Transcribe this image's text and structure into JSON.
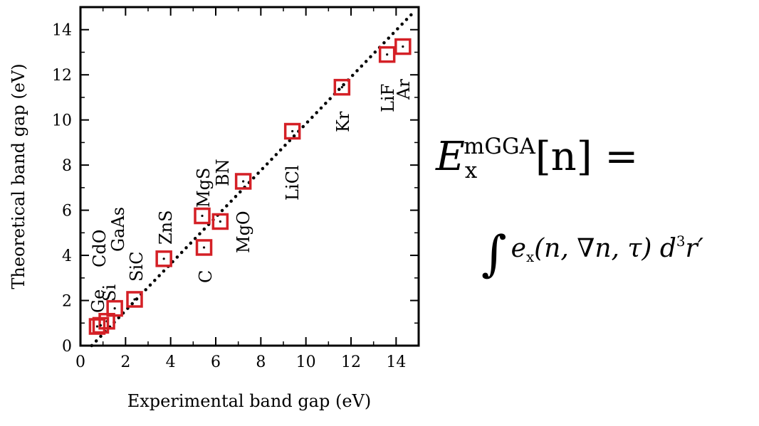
{
  "chart_data": {
    "type": "scatter",
    "xlabel": "Experimental band gap (eV)",
    "ylabel": "Theoretical band gap (eV)",
    "xlim": [
      0,
      15
    ],
    "ylim": [
      0,
      15
    ],
    "xticks": [
      "0",
      "2",
      "4",
      "6",
      "8",
      "10",
      "12",
      "14"
    ],
    "yticks": [
      "0",
      "2",
      "4",
      "6",
      "8",
      "10",
      "12",
      "14"
    ],
    "grid": false,
    "reference_line": {
      "style": "dotted",
      "from": [
        0.5,
        0
      ],
      "to": [
        14.8,
        14.8
      ]
    },
    "points": [
      {
        "label": "Ge",
        "x": 0.74,
        "y": 0.85
      },
      {
        "label": "Si",
        "x": 1.17,
        "y": 1.08
      },
      {
        "label": "GaAs",
        "x": 1.52,
        "y": 1.65
      },
      {
        "label": "CdO",
        "x": 0.9,
        "y": 0.9
      },
      {
        "label": "SiC",
        "x": 2.4,
        "y": 2.05
      },
      {
        "label": "ZnS",
        "x": 3.7,
        "y": 3.85
      },
      {
        "label": "C",
        "x": 5.48,
        "y": 4.35
      },
      {
        "label": "MgS",
        "x": 5.4,
        "y": 5.75
      },
      {
        "label": "BN",
        "x": 6.2,
        "y": 5.5
      },
      {
        "label": "MgO",
        "x": 7.22,
        "y": 7.28
      },
      {
        "label": "LiCl",
        "x": 9.4,
        "y": 9.5
      },
      {
        "label": "Kr",
        "x": 11.6,
        "y": 11.45
      },
      {
        "label": "LiF",
        "x": 13.6,
        "y": 12.9
      },
      {
        "label": "Ar",
        "x": 14.3,
        "y": 13.25
      }
    ],
    "marker_color": "#d42026"
  },
  "formula": {
    "line1": {
      "E": "E",
      "sub": "x",
      "sup": "mGGA",
      "arg": "[n] ="
    },
    "line2": {
      "integral": "∫",
      "e": "e",
      "sub": "x",
      "args": "(n, ∇n, τ) d",
      "sup": "3",
      "tail": "r′"
    }
  }
}
